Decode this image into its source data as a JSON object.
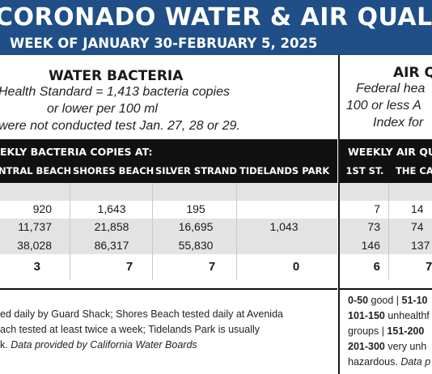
{
  "banner": {
    "title": "CORONADO WATER & AIR QUALITY R",
    "subtitle": "WEEK OF JANUARY 30-FEBRUARY 5, 2025"
  },
  "water": {
    "heading": "WATER BACTERIA",
    "lines": [
      "Health Standard  = 1,413 bacteria copies",
      "or lower per 100 ml",
      "were not conducted test Jan. 27, 28 or 29."
    ],
    "band_title": "EKLY BACTERIA COPIES AT:",
    "columns": [
      "NTRAL BEACH",
      "SHORES BEACH",
      "SILVER STRAND",
      "TIDELANDS PARK"
    ],
    "rows": [
      [
        "",
        "",
        "",
        ""
      ],
      [
        "920",
        "1,643",
        "195",
        ""
      ],
      [
        "11,737",
        "21,858",
        "16,695",
        "1,043"
      ],
      [
        "38,028",
        "86,317",
        "55,830",
        ""
      ],
      [
        "3",
        "7",
        "7",
        "0"
      ]
    ],
    "notes": [
      "ed daily by Guard Shack; Shores Beach tested daily at Avenida",
      "ach tested at least twice a week; Tidelands Park is usually",
      "k.",
      "Data provided by California Water Boards"
    ]
  },
  "air": {
    "heading": "AIR Q",
    "lines": [
      "Federal hea",
      "100 or less A",
      "Index for"
    ],
    "band_title": "WEEKLY AIR QU",
    "columns": [
      "1ST ST.",
      "THE CAY"
    ],
    "rows": [
      [
        "",
        ""
      ],
      [
        "7",
        "14"
      ],
      [
        "73",
        "74"
      ],
      [
        "146",
        "137"
      ],
      [
        "6",
        "7"
      ]
    ],
    "legend": [
      {
        "range": "0-50",
        "text": " good | "
      },
      {
        "range": "51-10",
        "text": ""
      },
      {
        "range": "101-150",
        "text": " unhealthf"
      },
      {
        "range": "",
        "text": "groups | "
      },
      {
        "range": "151-200",
        "text": ""
      },
      {
        "range": "201-300",
        "text": " very unh"
      },
      {
        "range": "",
        "text": "hazardous. "
      },
      {
        "range": "",
        "text": "Data p"
      }
    ]
  },
  "colors": {
    "banner": "#1f4f86",
    "band": "#111111",
    "shade": "#e3e3e3"
  }
}
